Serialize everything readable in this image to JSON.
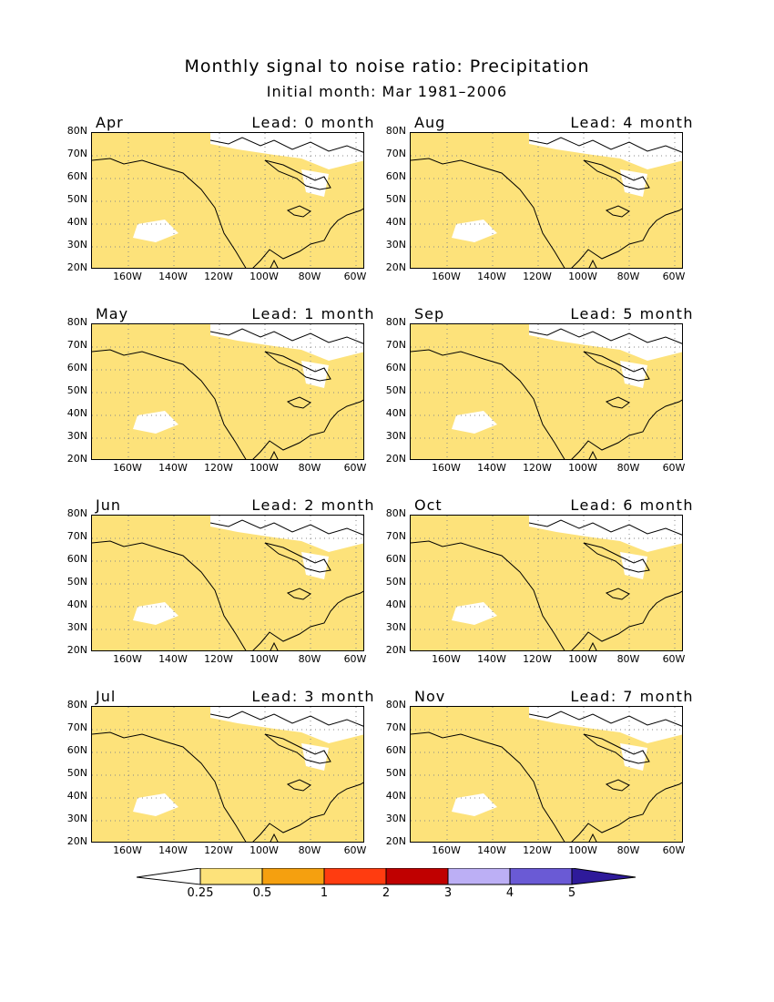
{
  "header": {
    "title": "Monthly signal to noise ratio: Precipitation",
    "subtitle": "Initial month: Mar 1981–2006"
  },
  "axes": {
    "lat_labels": [
      "80N",
      "70N",
      "60N",
      "50N",
      "40N",
      "30N",
      "20N"
    ],
    "lon_labels": [
      "160W",
      "140W",
      "120W",
      "100W",
      "80W",
      "60W"
    ]
  },
  "panels": [
    {
      "month": "Apr",
      "lead": "Lead: 0 month"
    },
    {
      "month": "Aug",
      "lead": "Lead: 4 month"
    },
    {
      "month": "May",
      "lead": "Lead: 1 month"
    },
    {
      "month": "Sep",
      "lead": "Lead: 5 month"
    },
    {
      "month": "Jun",
      "lead": "Lead: 2 month"
    },
    {
      "month": "Oct",
      "lead": "Lead: 6 month"
    },
    {
      "month": "Jul",
      "lead": "Lead: 3 month"
    },
    {
      "month": "Nov",
      "lead": "Lead: 7 month"
    }
  ],
  "colorbar": {
    "labels": [
      "0.25",
      "0.5",
      "1",
      "2",
      "3",
      "4",
      "5"
    ],
    "colors": [
      "#ffffff",
      "#fde27a",
      "#f5a00f",
      "#ff3c10",
      "#c00000",
      "#bcaff5",
      "#6a5ad5",
      "#2e1a9a"
    ]
  }
}
